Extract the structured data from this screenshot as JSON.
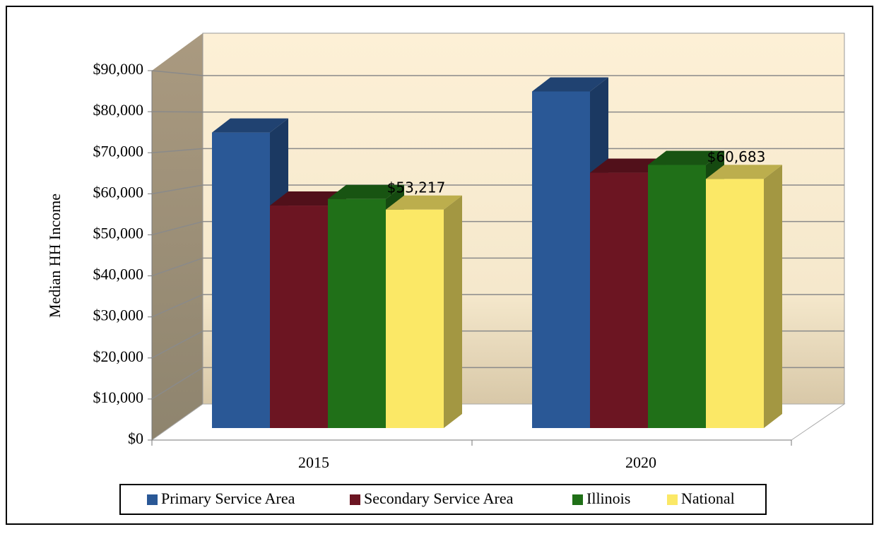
{
  "chart_data": {
    "type": "bar3d",
    "y_label": "Median HH Income",
    "categories": [
      "2015",
      "2020"
    ],
    "series": [
      {
        "name": "Primary Service Area",
        "color": "#2a5896",
        "values": [
          72000,
          82000
        ]
      },
      {
        "name": "Secondary Service Area",
        "color": "#6c1522",
        "values": [
          54200,
          62200
        ]
      },
      {
        "name": "Illinois",
        "color": "#207018",
        "values": [
          55800,
          64100
        ]
      },
      {
        "name": "National",
        "color": "#fbe866",
        "values": [
          53217,
          60683
        ],
        "value_labels": [
          "$53,217",
          "$60,683"
        ]
      }
    ],
    "ylim": [
      0,
      90000
    ],
    "yticks": [
      {
        "value": 0,
        "label": "$0"
      },
      {
        "value": 10000,
        "label": "$10,000"
      },
      {
        "value": 20000,
        "label": "$20,000"
      },
      {
        "value": 30000,
        "label": "$30,000"
      },
      {
        "value": 40000,
        "label": "$40,000"
      },
      {
        "value": 50000,
        "label": "$50,000"
      },
      {
        "value": 60000,
        "label": "$60,000"
      },
      {
        "value": 70000,
        "label": "$70,000"
      },
      {
        "value": 80000,
        "label": "$80,000"
      },
      {
        "value": 90000,
        "label": "$90,000"
      }
    ],
    "grid": true,
    "legend": "bottom"
  }
}
